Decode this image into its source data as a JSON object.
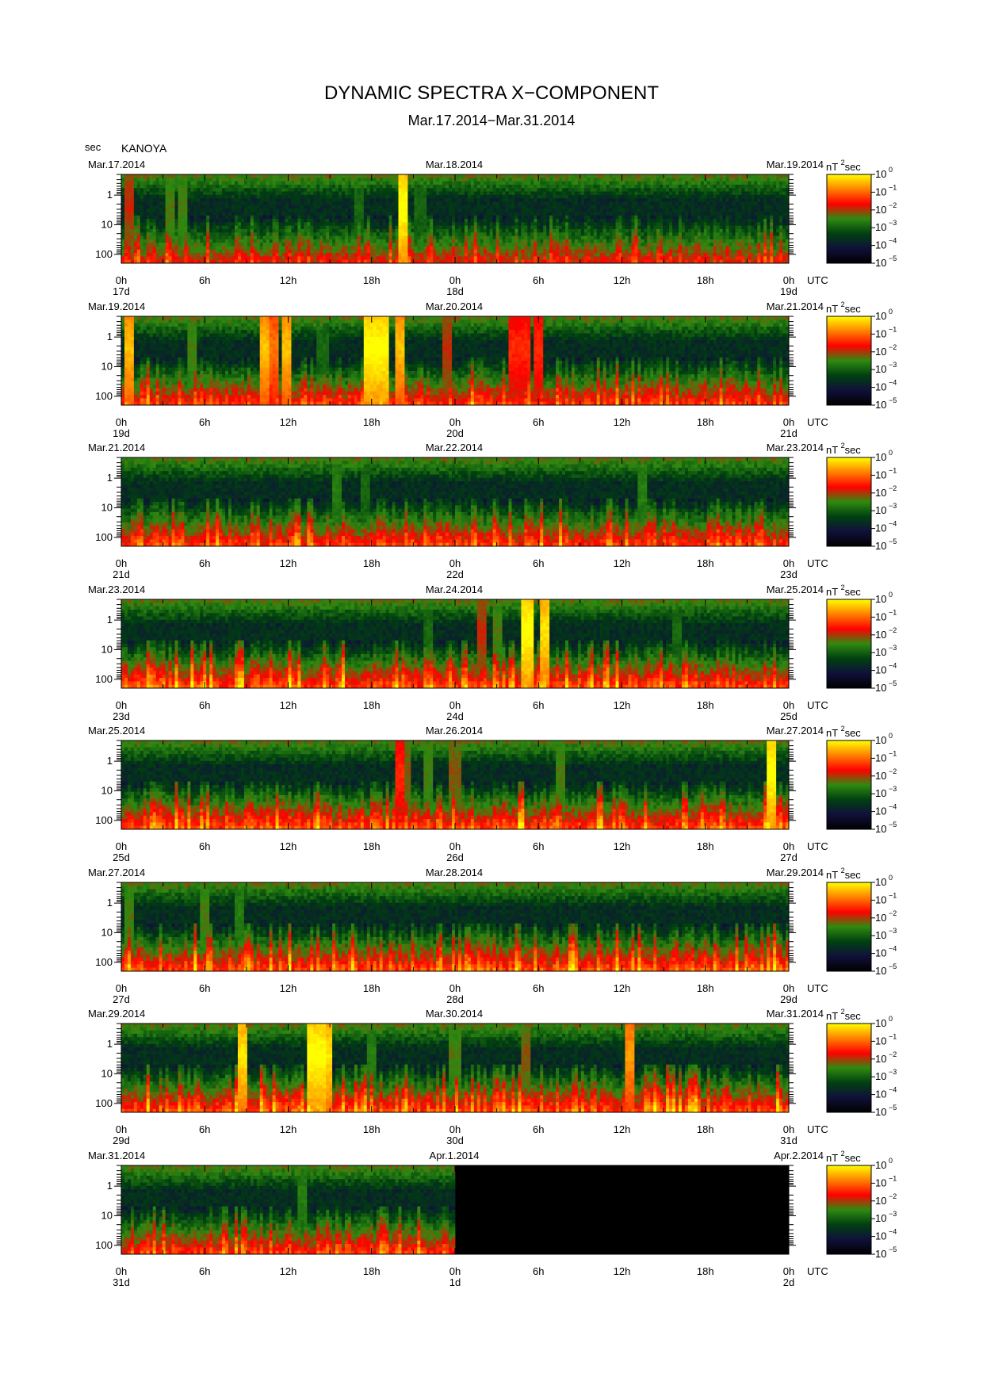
{
  "header": {
    "title": "DYNAMIC SPECTRA X−COMPONENT",
    "subtitle": "Mar.17.2014−Mar.31.2014",
    "unit_label": "sec",
    "station": "KANOYA"
  },
  "colorbar": {
    "label_base": "nT",
    "label_exp": "2",
    "label_unit": "sec",
    "tick_labels": [
      "10",
      "10",
      "10",
      "10",
      "10",
      "10"
    ],
    "tick_exponents": [
      "0",
      "−1",
      "−2",
      "−3",
      "−4",
      "−5"
    ],
    "colors": [
      "#ffff00",
      "#ff8000",
      "#ff0000",
      "#2f8a10",
      "#004010",
      "#10103a",
      "#000000"
    ]
  },
  "chart_data": {
    "type": "heatmap",
    "title": "DYNAMIC SPECTRA X−COMPONENT",
    "subtitle": "Mar.17.2014−Mar.31.2014",
    "ylabel": "sec",
    "y_tick_labels": [
      "1",
      "10",
      "100"
    ],
    "x_tick_labels": [
      "0h",
      "6h",
      "12h",
      "18h",
      "0h",
      "6h",
      "12h",
      "18h",
      "0h"
    ],
    "x_unit": "UTC",
    "color_scale": "log",
    "color_range": [
      1e-05,
      1
    ],
    "panels": [
      {
        "date_left": "Mar.17.2014",
        "date_mid": "Mar.18.2014",
        "date_right": "Mar.19.2014",
        "day_labels": [
          "17d",
          "18d",
          "19d"
        ],
        "activity": 0.25,
        "seed": 11,
        "bursts": [
          [
            20.3,
            1.0
          ],
          [
            0.5,
            0.6
          ],
          [
            3.5,
            0.5
          ],
          [
            4.5,
            0.5
          ],
          [
            17.0,
            0.4
          ],
          [
            21.5,
            0.4
          ]
        ],
        "data_end": 48
      },
      {
        "date_left": "Mar.19.2014",
        "date_mid": "Mar.20.2014",
        "date_right": "Mar.21.2014",
        "day_labels": [
          "19d",
          "20d",
          "21d"
        ],
        "activity": 0.35,
        "seed": 23,
        "bursts": [
          [
            0.6,
            0.9
          ],
          [
            10.4,
            0.9
          ],
          [
            11.0,
            0.8
          ],
          [
            11.8,
            0.9
          ],
          [
            17.8,
            1.0
          ],
          [
            18.3,
            1.0
          ],
          [
            19.0,
            1.0
          ],
          [
            20.0,
            0.9
          ],
          [
            23.4,
            0.6
          ],
          [
            28.3,
            0.7
          ],
          [
            29.0,
            0.7
          ],
          [
            30.0,
            0.7
          ],
          [
            5.0,
            0.5
          ],
          [
            14.5,
            0.4
          ]
        ],
        "data_end": 48
      },
      {
        "date_left": "Mar.21.2014",
        "date_mid": "Mar.22.2014",
        "date_right": "Mar.23.2014",
        "day_labels": [
          "21d",
          "22d",
          "23d"
        ],
        "activity": 0.35,
        "seed": 37,
        "bursts": [
          [
            15.5,
            0.45
          ],
          [
            17.5,
            0.4
          ],
          [
            37.5,
            0.45
          ]
        ],
        "data_end": 48
      },
      {
        "date_left": "Mar.23.2014",
        "date_mid": "Mar.24.2014",
        "date_right": "Mar.25.2014",
        "day_labels": [
          "23d",
          "24d",
          "25d"
        ],
        "activity": 0.4,
        "seed": 41,
        "bursts": [
          [
            29.2,
            1.0
          ],
          [
            30.5,
            0.95
          ],
          [
            26.0,
            0.6
          ],
          [
            27.0,
            0.5
          ],
          [
            22.0,
            0.4
          ],
          [
            40.0,
            0.4
          ]
        ],
        "data_end": 48
      },
      {
        "date_left": "Mar.25.2014",
        "date_mid": "Mar.26.2014",
        "date_right": "Mar.27.2014",
        "day_labels": [
          "25d",
          "26d",
          "27d"
        ],
        "activity": 0.4,
        "seed": 53,
        "bursts": [
          [
            20.0,
            0.7
          ],
          [
            46.8,
            1.0
          ],
          [
            20.5,
            0.55
          ],
          [
            22.0,
            0.5
          ],
          [
            24.0,
            0.55
          ],
          [
            31.5,
            0.5
          ]
        ],
        "data_end": 48
      },
      {
        "date_left": "Mar.27.2014",
        "date_mid": "Mar.28.2014",
        "date_right": "Mar.29.2014",
        "day_labels": [
          "27d",
          "28d",
          "29d"
        ],
        "activity": 0.4,
        "seed": 67,
        "bursts": [
          [
            0.5,
            0.5
          ],
          [
            6.0,
            0.5
          ],
          [
            8.5,
            0.45
          ]
        ],
        "data_end": 48
      },
      {
        "date_left": "Mar.29.2014",
        "date_mid": "Mar.30.2014",
        "date_right": "Mar.31.2014",
        "day_labels": [
          "29d",
          "30d",
          "31d"
        ],
        "activity": 0.4,
        "seed": 79,
        "bursts": [
          [
            8.8,
            0.95
          ],
          [
            13.8,
            1.0
          ],
          [
            14.3,
            1.0
          ],
          [
            14.8,
            0.95
          ],
          [
            36.5,
            0.85
          ],
          [
            18.0,
            0.45
          ],
          [
            24.0,
            0.5
          ],
          [
            29.0,
            0.55
          ]
        ],
        "data_end": 48
      },
      {
        "date_left": "Mar.31.2014",
        "date_mid": "Apr.1.2014",
        "date_right": "Apr.2.2014",
        "day_labels": [
          "31d",
          "1d",
          "2d"
        ],
        "activity": 0.35,
        "seed": 97,
        "bursts": [
          [
            13.0,
            0.45
          ]
        ],
        "data_end": 24
      }
    ]
  }
}
